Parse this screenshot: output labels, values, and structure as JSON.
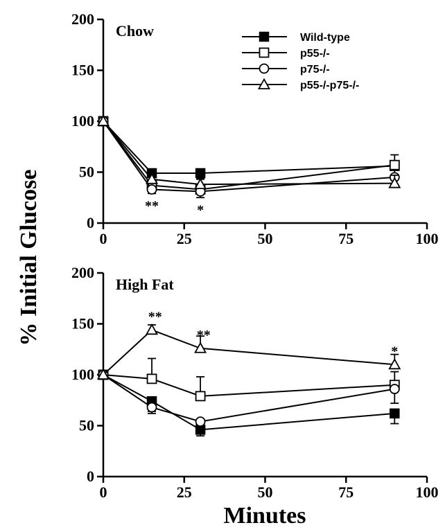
{
  "figure": {
    "ylabel": "% Initial Glucose",
    "xlabel": "Minutes"
  },
  "legend": {
    "entries": [
      {
        "label": "Wild-type",
        "marker": "filled-square"
      },
      {
        "label": "p55-/-",
        "marker": "open-square"
      },
      {
        "label": "p75-/-",
        "marker": "open-circle"
      },
      {
        "label": "p55-/-p75-/-",
        "marker": "open-triangle"
      }
    ]
  },
  "chart_data": [
    {
      "type": "line",
      "title": "Chow",
      "xlim": [
        0,
        100
      ],
      "ylim": [
        0,
        200
      ],
      "x_ticks": [
        "0",
        "25",
        "50",
        "75",
        "100"
      ],
      "y_ticks": [
        "0",
        "50",
        "100",
        "150",
        "200"
      ],
      "grid": false,
      "series": [
        {
          "name": "Wild-type",
          "marker": "filled-square",
          "x": [
            0,
            15,
            30,
            90
          ],
          "y": [
            100,
            49,
            49,
            56
          ],
          "err": [
            0,
            10,
            5,
            11
          ]
        },
        {
          "name": "p55-/-",
          "marker": "open-square",
          "x": [
            0,
            15,
            30,
            90
          ],
          "y": [
            100,
            37,
            33,
            57
          ],
          "err": [
            0,
            5,
            5,
            10
          ]
        },
        {
          "name": "p75-/-",
          "marker": "open-circle",
          "x": [
            0,
            15,
            30,
            90
          ],
          "y": [
            100,
            33,
            31,
            45
          ],
          "err": [
            0,
            4,
            6,
            7
          ]
        },
        {
          "name": "p55-/-p75-/-",
          "marker": "open-triangle",
          "x": [
            0,
            15,
            30,
            90
          ],
          "y": [
            100,
            43,
            38,
            39
          ],
          "err": [
            0,
            5,
            5,
            8
          ]
        }
      ],
      "annotations": [
        {
          "text": "**",
          "x": 15,
          "y": 18
        },
        {
          "text": "*",
          "x": 30,
          "y": 14
        }
      ]
    },
    {
      "type": "line",
      "title": "High Fat",
      "xlim": [
        0,
        100
      ],
      "ylim": [
        0,
        200
      ],
      "x_ticks": [
        "0",
        "25",
        "50",
        "75",
        "100"
      ],
      "y_ticks": [
        "0",
        "50",
        "100",
        "150",
        "200"
      ],
      "grid": false,
      "series": [
        {
          "name": "Wild-type",
          "marker": "filled-square",
          "x": [
            0,
            15,
            30,
            90
          ],
          "y": [
            100,
            74,
            46,
            62
          ],
          "err": [
            0,
            10,
            6,
            10
          ]
        },
        {
          "name": "p55-/-",
          "marker": "open-square",
          "x": [
            0,
            15,
            30,
            90
          ],
          "y": [
            100,
            96,
            79,
            90
          ],
          "err": [
            0,
            20,
            19,
            13
          ]
        },
        {
          "name": "p75-/-",
          "marker": "open-circle",
          "x": [
            0,
            15,
            30,
            90
          ],
          "y": [
            100,
            68,
            54,
            86
          ],
          "err": [
            0,
            6,
            6,
            14
          ]
        },
        {
          "name": "p55-/-p75-/-",
          "marker": "open-triangle",
          "x": [
            0,
            15,
            30,
            90
          ],
          "y": [
            100,
            144,
            126,
            110
          ],
          "err": [
            0,
            5,
            12,
            10
          ]
        }
      ],
      "annotations": [
        {
          "text": "**",
          "x": 16,
          "y": 158
        },
        {
          "text": "**",
          "x": 31,
          "y": 140
        },
        {
          "text": "*",
          "x": 90,
          "y": 124
        }
      ]
    }
  ]
}
